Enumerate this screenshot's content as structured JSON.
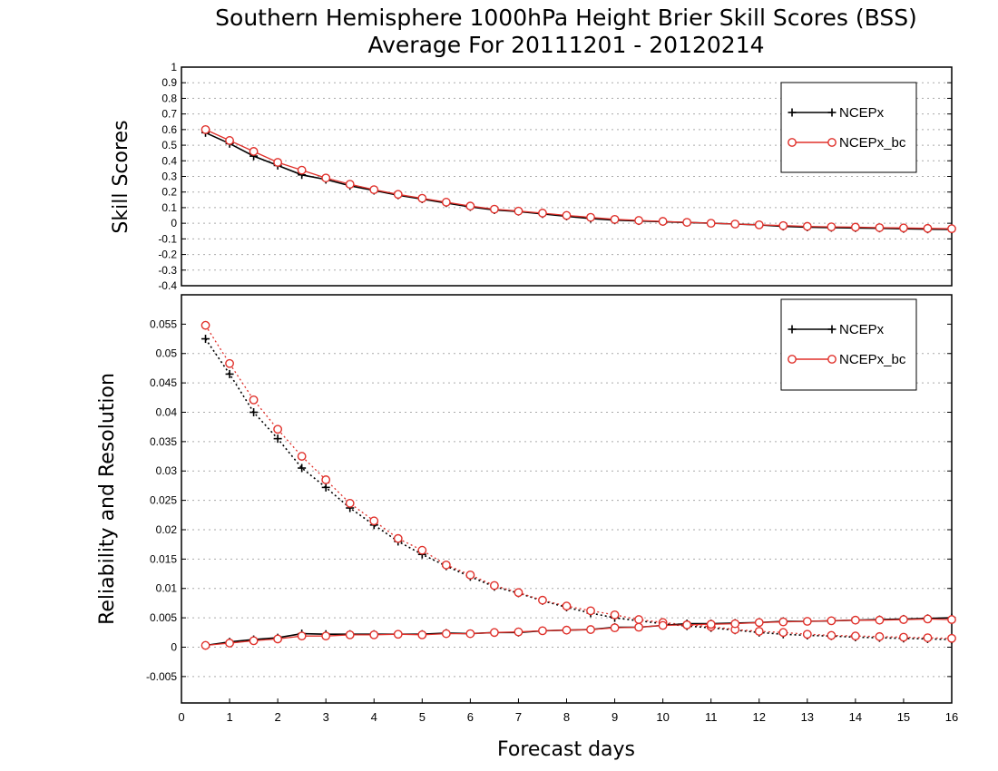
{
  "title": {
    "line1": "Southern Hemisphere 1000hPa Height Brier Skill Scores (BSS)",
    "line2": "Average For 20111201 - 20120214"
  },
  "colors": {
    "ncepx": "#000000",
    "ncepx_bc": "#e0302a",
    "grid": "#aaaaaa"
  },
  "chart_data": [
    {
      "type": "line",
      "panel": "top",
      "ylabel": "Skill Scores",
      "ylim": [
        -0.4,
        1
      ],
      "yticks": [
        "1",
        "0.9",
        "0.8",
        "0.7",
        "0.6",
        "0.5",
        "0.4",
        "0.3",
        "0.2",
        "0.1",
        "0",
        "-0.1",
        "-0.2",
        "-0.3",
        "-0.4"
      ],
      "xlim": [
        0,
        16
      ],
      "grid": true,
      "legend_position": "top-right",
      "legend": [
        "NCEPx",
        "NCEPx_bc"
      ],
      "x": [
        0.5,
        1,
        1.5,
        2,
        2.5,
        3,
        3.5,
        4,
        4.5,
        5,
        5.5,
        6,
        6.5,
        7,
        7.5,
        8,
        8.5,
        9,
        9.5,
        10,
        10.5,
        11,
        11.5,
        12,
        12.5,
        13,
        13.5,
        14,
        14.5,
        15,
        15.5,
        16
      ],
      "series": [
        {
          "name": "NCEPx",
          "values": [
            0.58,
            0.51,
            0.43,
            0.37,
            0.31,
            0.28,
            0.24,
            0.21,
            0.18,
            0.155,
            0.13,
            0.105,
            0.085,
            0.075,
            0.06,
            0.045,
            0.03,
            0.02,
            0.015,
            0.01,
            0.005,
            0.0,
            -0.005,
            -0.01,
            -0.02,
            -0.025,
            -0.028,
            -0.03,
            -0.032,
            -0.035,
            -0.038,
            -0.04
          ]
        },
        {
          "name": "NCEPx_bc",
          "values": [
            0.6,
            0.53,
            0.46,
            0.39,
            0.34,
            0.29,
            0.25,
            0.215,
            0.185,
            0.16,
            0.135,
            0.11,
            0.09,
            0.078,
            0.065,
            0.05,
            0.038,
            0.025,
            0.018,
            0.012,
            0.006,
            0.0,
            -0.005,
            -0.01,
            -0.015,
            -0.02,
            -0.023,
            -0.025,
            -0.028,
            -0.03,
            -0.033,
            -0.035
          ]
        }
      ]
    },
    {
      "type": "line",
      "panel": "bottom",
      "ylabel": "Reliability and Resolution",
      "xlabel": "Forecast days",
      "ylim": [
        -0.0095,
        0.06
      ],
      "yticks": [
        "0.055",
        "0.05",
        "0.045",
        "0.04",
        "0.035",
        "0.03",
        "0.025",
        "0.02",
        "0.015",
        "0.01",
        "0.005",
        "0",
        "-0.005"
      ],
      "xlim": [
        0,
        16
      ],
      "xticks": [
        "0",
        "1",
        "2",
        "3",
        "4",
        "5",
        "6",
        "7",
        "8",
        "9",
        "10",
        "11",
        "12",
        "13",
        "14",
        "15",
        "16"
      ],
      "grid": true,
      "legend_position": "top-right",
      "legend": [
        "NCEPx",
        "NCEPx_bc"
      ],
      "x": [
        0.5,
        1,
        1.5,
        2,
        2.5,
        3,
        3.5,
        4,
        4.5,
        5,
        5.5,
        6,
        6.5,
        7,
        7.5,
        8,
        8.5,
        9,
        9.5,
        10,
        10.5,
        11,
        11.5,
        12,
        12.5,
        13,
        13.5,
        14,
        14.5,
        15,
        15.5,
        16
      ],
      "series": [
        {
          "name": "NCEPx reliability",
          "style": "dotted",
          "values": [
            0.0525,
            0.0465,
            0.04,
            0.0355,
            0.0305,
            0.0272,
            0.0237,
            0.0208,
            0.018,
            0.0158,
            0.0138,
            0.012,
            0.0103,
            0.0092,
            0.0079,
            0.0068,
            0.0058,
            0.005,
            0.0045,
            0.004,
            0.0036,
            0.0033,
            0.0029,
            0.0025,
            0.0022,
            0.002,
            0.0019,
            0.0017,
            0.0016,
            0.0015,
            0.0014,
            0.0013
          ]
        },
        {
          "name": "NCEPx_bc reliability",
          "style": "dotted",
          "values": [
            0.0548,
            0.0483,
            0.0421,
            0.0371,
            0.0325,
            0.0285,
            0.0245,
            0.0215,
            0.0185,
            0.0165,
            0.014,
            0.0123,
            0.0105,
            0.0093,
            0.008,
            0.007,
            0.0062,
            0.0055,
            0.0047,
            0.0042,
            0.0038,
            0.0035,
            0.003,
            0.0027,
            0.0025,
            0.0022,
            0.002,
            0.0019,
            0.0018,
            0.0017,
            0.0016,
            0.0015
          ]
        },
        {
          "name": "NCEPx resolution",
          "style": "solid",
          "values": [
            0.0003,
            0.0009,
            0.0013,
            0.0016,
            0.0023,
            0.0022,
            0.0022,
            0.0022,
            0.0022,
            0.0022,
            0.0024,
            0.0023,
            0.0025,
            0.0025,
            0.0028,
            0.0029,
            0.003,
            0.0034,
            0.0034,
            0.0037,
            0.004,
            0.004,
            0.0041,
            0.0042,
            0.0044,
            0.0044,
            0.0045,
            0.0046,
            0.0047,
            0.0048,
            0.0049,
            0.005
          ]
        },
        {
          "name": "NCEPx_bc resolution",
          "style": "solid",
          "values": [
            0.0003,
            0.0007,
            0.0011,
            0.0014,
            0.0019,
            0.0019,
            0.0021,
            0.0021,
            0.0022,
            0.0021,
            0.0023,
            0.0023,
            0.0025,
            0.0026,
            0.0028,
            0.0029,
            0.003,
            0.0033,
            0.0034,
            0.0037,
            0.0038,
            0.0039,
            0.004,
            0.0042,
            0.0043,
            0.0044,
            0.0045,
            0.0046,
            0.0046,
            0.0047,
            0.0048,
            0.0047
          ]
        }
      ]
    }
  ]
}
